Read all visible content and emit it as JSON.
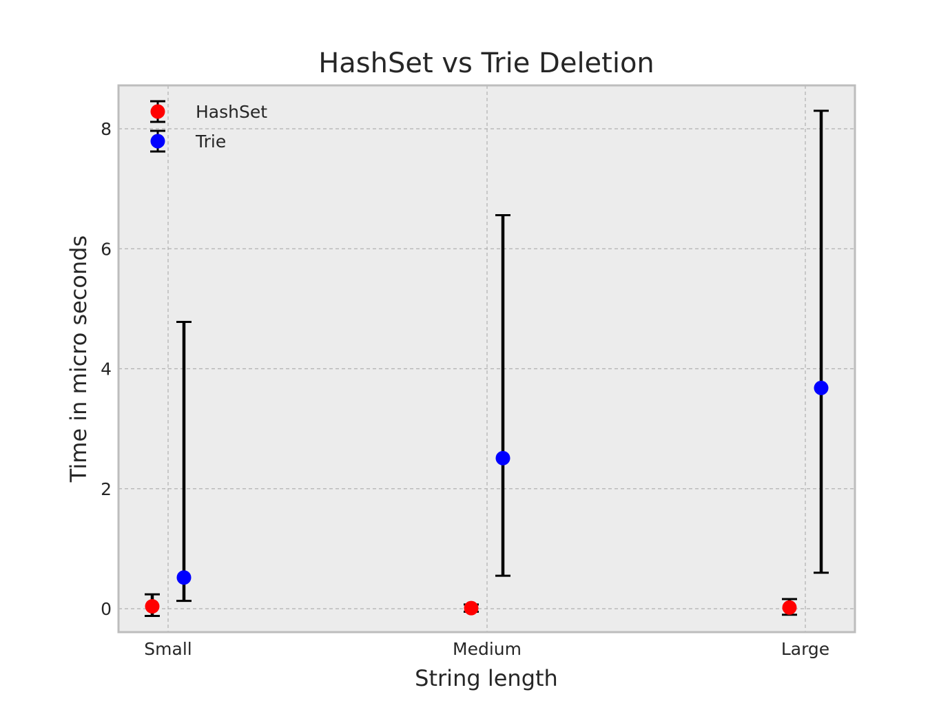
{
  "chart_data": {
    "type": "scatter",
    "title": "HashSet vs Trie Deletion",
    "xlabel": "String length",
    "ylabel": "Time in micro seconds",
    "categories": [
      "Small",
      "Medium",
      "Large"
    ],
    "ylim": [
      -0.4,
      8.7
    ],
    "yticks": [
      0,
      2,
      4,
      6,
      8
    ],
    "grid": true,
    "legend_position": "top-left",
    "series": [
      {
        "name": "HashSet",
        "color": "#ff0000",
        "values": [
          0.04,
          0.01,
          0.02
        ],
        "error_low": [
          -0.12,
          -0.05,
          -0.1
        ],
        "error_high": [
          0.24,
          0.07,
          0.16
        ]
      },
      {
        "name": "Trie",
        "color": "#0000ff",
        "values": [
          0.52,
          2.51,
          3.68
        ],
        "error_low": [
          0.13,
          0.55,
          0.6
        ],
        "error_high": [
          4.78,
          6.56,
          8.3
        ]
      }
    ]
  }
}
